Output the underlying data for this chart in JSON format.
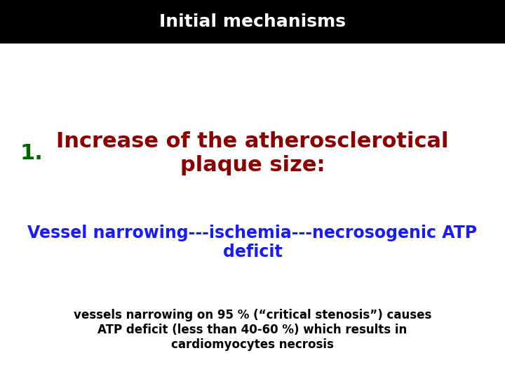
{
  "title": "Initial mechanisms",
  "title_color": "#ffffff",
  "title_bg_color": "#000000",
  "title_fontsize": 18,
  "bg_color": "#ffffff",
  "item1_number": "1.",
  "item1_number_color": "#006400",
  "item1_text": "Increase of the atherosclerotical\nplaque size:",
  "item1_color": "#8B0000",
  "item1_fontsize": 22,
  "item2_text": "Vessel narrowing---ischemia---necrosogenic ATP\ndeficit",
  "item2_color": "#1a1aff",
  "item2_fontsize": 17,
  "item3_text": "vessels narrowing on 95 % (“critical stenosis”) causes\nATP deficit (less than 40-60 %) which results in\ncardiomyocytes necrosis",
  "item3_color": "#000000",
  "item3_fontsize": 12,
  "title_bar_height": 0.115
}
